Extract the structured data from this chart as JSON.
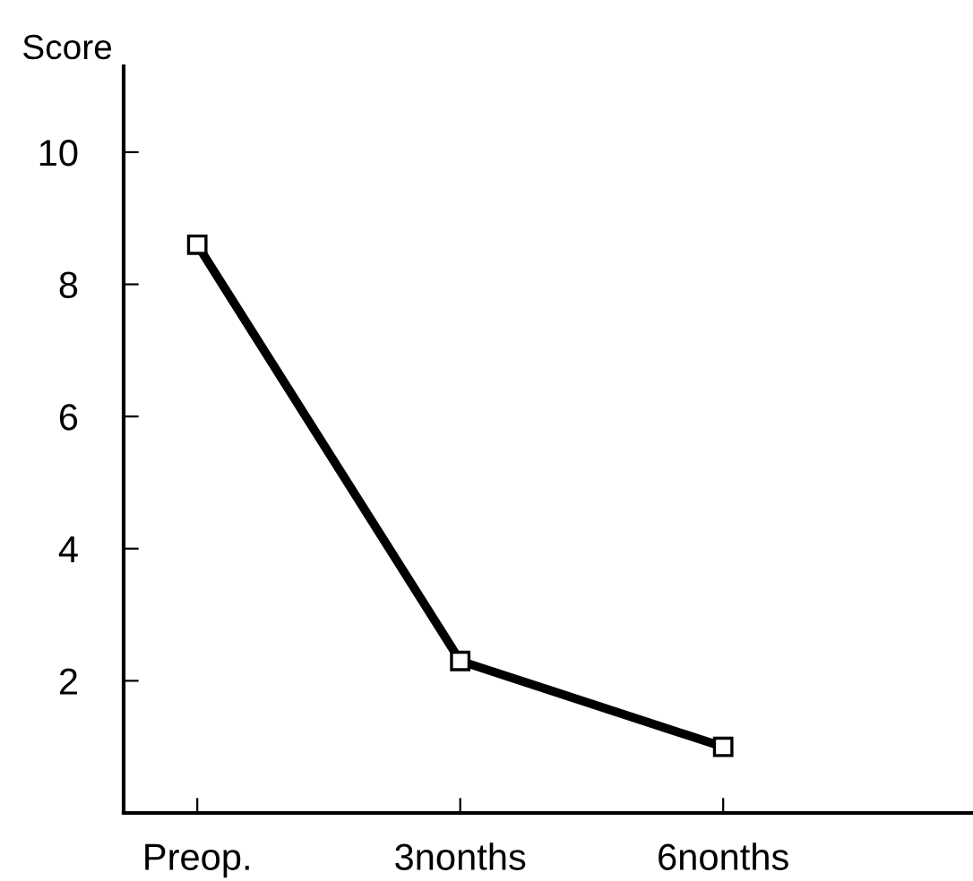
{
  "chart_data": {
    "type": "line",
    "ylabel": "Score",
    "categories": [
      "Preop.",
      "3nonths",
      "6nonths"
    ],
    "series": [
      {
        "color": "#000000",
        "values": [
          8.6,
          2.3,
          1.0
        ]
      }
    ],
    "ylim": [
      0,
      11.3
    ],
    "yticks": [
      2,
      4,
      6,
      8,
      10
    ],
    "marker": "square",
    "line_style": "solid",
    "grid": false,
    "legend": false
  }
}
